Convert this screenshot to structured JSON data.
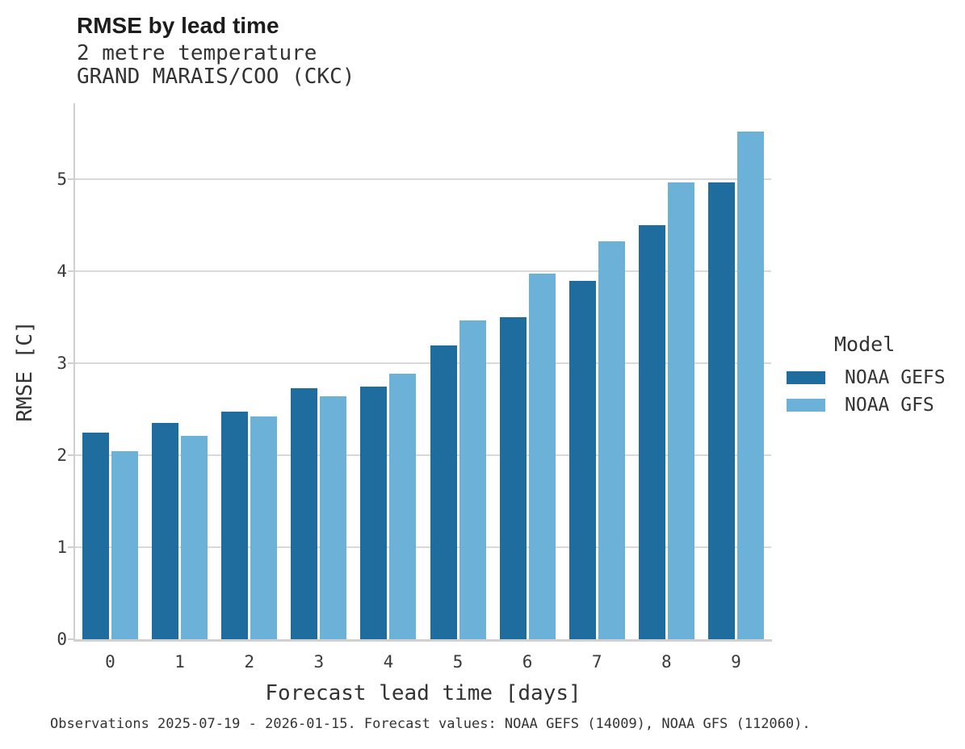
{
  "chart_data": {
    "type": "bar",
    "title": "RMSE by lead time",
    "subtitle": "2 metre temperature",
    "station": "GRAND MARAIS/COO (CKC)",
    "xlabel": "Forecast lead time [days]",
    "ylabel": "RMSE [C]",
    "categories": [
      "0",
      "1",
      "2",
      "3",
      "4",
      "5",
      "6",
      "7",
      "8",
      "9"
    ],
    "series": [
      {
        "name": "NOAA GEFS",
        "color": "#1e6d9e",
        "values": [
          2.24,
          2.35,
          2.47,
          2.73,
          2.74,
          3.19,
          3.5,
          3.89,
          4.5,
          4.96
        ]
      },
      {
        "name": "NOAA GFS",
        "color": "#6cb1d8",
        "values": [
          2.04,
          2.21,
          2.42,
          2.64,
          2.88,
          3.46,
          3.97,
          4.32,
          4.96,
          5.51
        ]
      }
    ],
    "ylim": [
      0,
      5.82
    ],
    "yticks": [
      0,
      1,
      2,
      3,
      4,
      5
    ],
    "grid": "horizontal-major-only",
    "legend_title": "Model",
    "legend_position": "right"
  },
  "footer": {
    "text": "Observations 2025-07-19 - 2026-01-15. Forecast values: NOAA GEFS (14009), NOAA GFS (112060)."
  },
  "colors": {
    "series_dark": "#1e6d9e",
    "series_light": "#6cb1d8",
    "gridline": "#d9d9d9",
    "spine": "#d0d0d0",
    "title_text": "#1c1c1c",
    "body_text": "#333333"
  }
}
